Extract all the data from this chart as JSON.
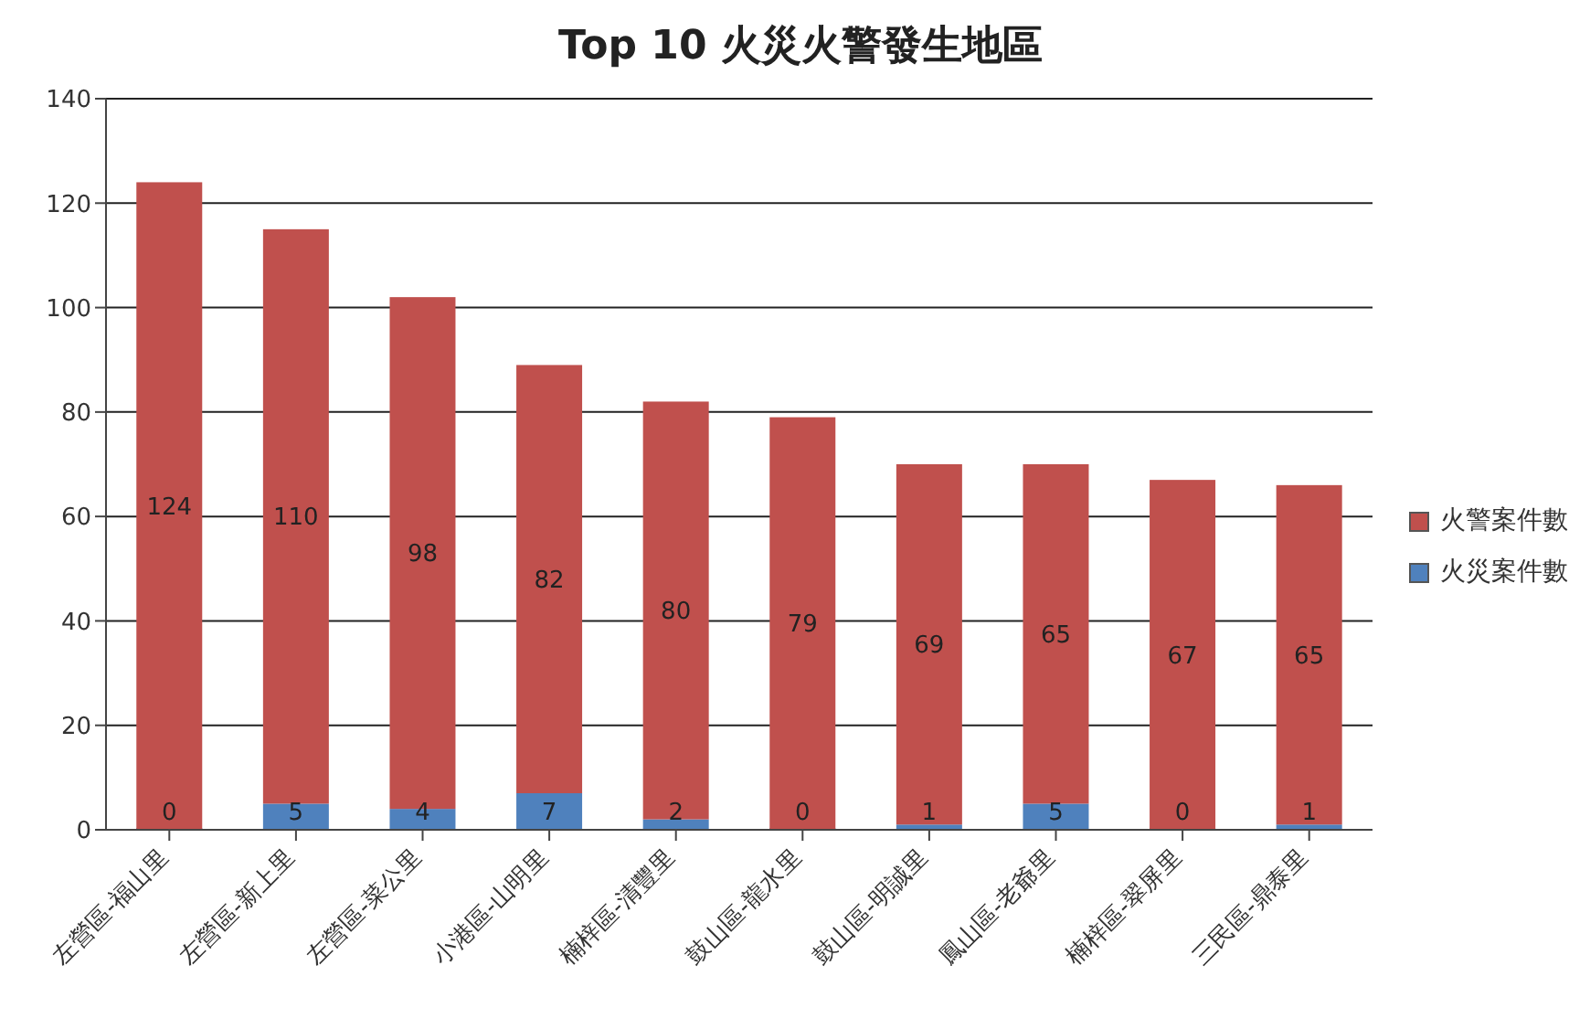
{
  "chart_data": {
    "type": "bar",
    "title": "Top 10 火災火警發生地區",
    "stacked": true,
    "data_labels": true,
    "grid": "y",
    "legend": "right",
    "categories": [
      "左營區-福山里",
      "左營區-新上里",
      "左營區-菜公里",
      "小港區-山明里",
      "楠梓區-清豐里",
      "鼓山區-龍水里",
      "鼓山區-明誠里",
      "鳳山區-老爺里",
      "楠梓區-翠屏里",
      "三民區-鼎泰里"
    ],
    "series": [
      {
        "name": "火災案件數",
        "color": "#4f81bd",
        "values": [
          0,
          5,
          4,
          7,
          2,
          0,
          1,
          5,
          0,
          1
        ]
      },
      {
        "name": "火警案件數",
        "color": "#c0504d",
        "values": [
          124,
          110,
          98,
          82,
          80,
          79,
          69,
          65,
          67,
          65
        ]
      }
    ],
    "ylim": [
      0,
      140
    ],
    "yticks": [
      0,
      20,
      40,
      60,
      80,
      100,
      120,
      140
    ]
  }
}
